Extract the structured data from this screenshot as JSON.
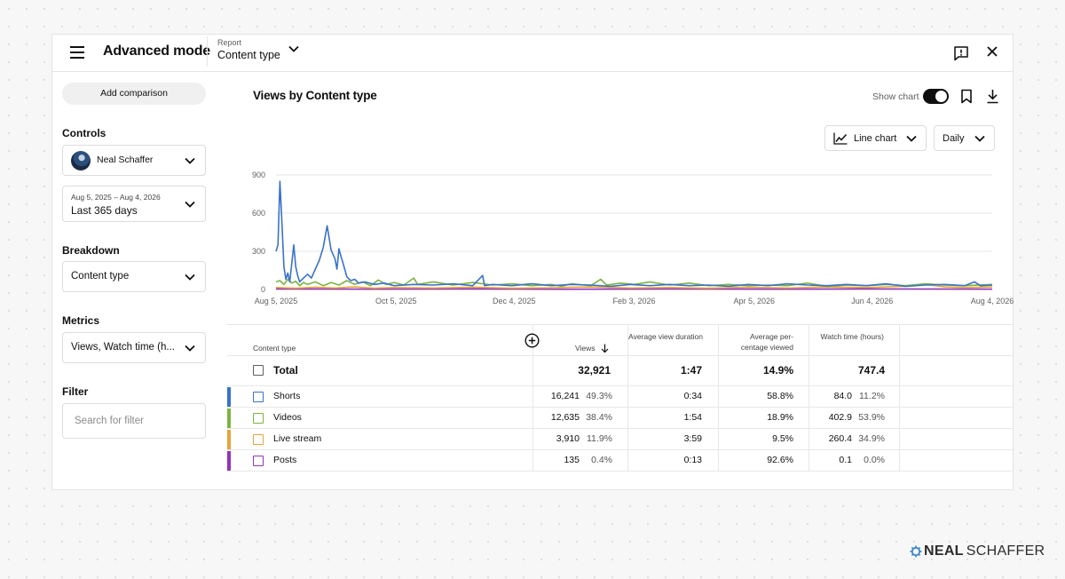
{
  "header": {
    "title": "Advanced mode",
    "report_label": "Report",
    "report_value": "Content type"
  },
  "sidebar": {
    "add_comparison": "Add comparison",
    "controls_label": "Controls",
    "channel_name": "Neal Schaffer",
    "date_range_small": "Aug 5, 2025 – Aug 4, 2026",
    "date_range": "Last 365 days",
    "breakdown_label": "Breakdown",
    "breakdown_value": "Content type",
    "metrics_label": "Metrics",
    "metrics_value": "Views, Watch time (h...",
    "filter_label": "Filter",
    "filter_placeholder": "Search for filter"
  },
  "chart_header": {
    "title": "Views by Content type",
    "show_chart_label": "Show chart",
    "show_chart_on": true,
    "chart_type": "Line chart",
    "granularity": "Daily"
  },
  "chart_data": {
    "type": "line",
    "x_tick_labels": [
      "Aug 5, 2025",
      "Oct 5, 2025",
      "Dec 4, 2025",
      "Feb 3, 2026",
      "Apr 5, 2026",
      "Jun 4, 2026",
      "Aug 4, 2026"
    ],
    "x_tick_days": [
      0,
      61,
      121,
      182,
      243,
      303,
      364
    ],
    "y_tick_labels": [
      "0",
      "300",
      "600",
      "900"
    ],
    "ylim": [
      0,
      900
    ],
    "grid": true,
    "series": [
      {
        "name": "Shorts",
        "color": "#3a72c8",
        "points": [
          [
            0,
            300
          ],
          [
            1,
            350
          ],
          [
            2,
            850
          ],
          [
            3,
            520
          ],
          [
            4,
            180
          ],
          [
            5,
            80
          ],
          [
            6,
            130
          ],
          [
            7,
            60
          ],
          [
            9,
            350
          ],
          [
            10,
            180
          ],
          [
            11,
            110
          ],
          [
            12,
            60
          ],
          [
            14,
            90
          ],
          [
            16,
            120
          ],
          [
            18,
            90
          ],
          [
            20,
            160
          ],
          [
            22,
            230
          ],
          [
            24,
            330
          ],
          [
            26,
            500
          ],
          [
            28,
            310
          ],
          [
            30,
            240
          ],
          [
            31,
            160
          ],
          [
            32,
            320
          ],
          [
            33,
            260
          ],
          [
            34,
            210
          ],
          [
            36,
            100
          ],
          [
            38,
            70
          ],
          [
            40,
            80
          ],
          [
            42,
            50
          ],
          [
            45,
            60
          ],
          [
            50,
            40
          ],
          [
            55,
            50
          ],
          [
            60,
            30
          ],
          [
            70,
            40
          ],
          [
            80,
            35
          ],
          [
            90,
            45
          ],
          [
            100,
            30
          ],
          [
            105,
            110
          ],
          [
            106,
            30
          ],
          [
            110,
            40
          ],
          [
            120,
            30
          ],
          [
            130,
            45
          ],
          [
            140,
            30
          ],
          [
            150,
            40
          ],
          [
            160,
            35
          ],
          [
            170,
            25
          ],
          [
            180,
            40
          ],
          [
            190,
            30
          ],
          [
            200,
            40
          ],
          [
            210,
            30
          ],
          [
            220,
            35
          ],
          [
            230,
            25
          ],
          [
            240,
            40
          ],
          [
            250,
            30
          ],
          [
            260,
            45
          ],
          [
            270,
            35
          ],
          [
            280,
            30
          ],
          [
            290,
            40
          ],
          [
            300,
            30
          ],
          [
            310,
            45
          ],
          [
            320,
            25
          ],
          [
            330,
            35
          ],
          [
            340,
            40
          ],
          [
            350,
            30
          ],
          [
            355,
            60
          ],
          [
            358,
            30
          ],
          [
            364,
            35
          ]
        ]
      },
      {
        "name": "Videos",
        "color": "#7cb342",
        "points": [
          [
            0,
            60
          ],
          [
            2,
            70
          ],
          [
            4,
            40
          ],
          [
            6,
            80
          ],
          [
            8,
            50
          ],
          [
            10,
            65
          ],
          [
            12,
            30
          ],
          [
            14,
            55
          ],
          [
            16,
            40
          ],
          [
            20,
            60
          ],
          [
            24,
            30
          ],
          [
            28,
            55
          ],
          [
            32,
            35
          ],
          [
            36,
            70
          ],
          [
            40,
            40
          ],
          [
            44,
            60
          ],
          [
            48,
            30
          ],
          [
            52,
            75
          ],
          [
            56,
            40
          ],
          [
            60,
            55
          ],
          [
            65,
            35
          ],
          [
            70,
            90
          ],
          [
            72,
            40
          ],
          [
            80,
            60
          ],
          [
            90,
            35
          ],
          [
            100,
            55
          ],
          [
            110,
            35
          ],
          [
            120,
            45
          ],
          [
            130,
            30
          ],
          [
            140,
            40
          ],
          [
            145,
            25
          ],
          [
            150,
            45
          ],
          [
            160,
            30
          ],
          [
            165,
            80
          ],
          [
            168,
            35
          ],
          [
            175,
            50
          ],
          [
            182,
            40
          ],
          [
            190,
            60
          ],
          [
            200,
            35
          ],
          [
            210,
            50
          ],
          [
            220,
            30
          ],
          [
            230,
            40
          ],
          [
            240,
            30
          ],
          [
            250,
            35
          ],
          [
            260,
            30
          ],
          [
            270,
            50
          ],
          [
            280,
            25
          ],
          [
            290,
            35
          ],
          [
            300,
            30
          ],
          [
            310,
            40
          ],
          [
            320,
            30
          ],
          [
            330,
            45
          ],
          [
            340,
            35
          ],
          [
            350,
            30
          ],
          [
            364,
            40
          ]
        ]
      },
      {
        "name": "Live stream",
        "color": "#e8a33d",
        "points": [
          [
            0,
            15
          ],
          [
            10,
            10
          ],
          [
            20,
            18
          ],
          [
            30,
            12
          ],
          [
            40,
            20
          ],
          [
            50,
            10
          ],
          [
            60,
            15
          ],
          [
            80,
            12
          ],
          [
            100,
            18
          ],
          [
            120,
            10
          ],
          [
            140,
            14
          ],
          [
            160,
            20
          ],
          [
            180,
            12
          ],
          [
            200,
            15
          ],
          [
            220,
            10
          ],
          [
            240,
            18
          ],
          [
            260,
            12
          ],
          [
            280,
            20
          ],
          [
            300,
            15
          ],
          [
            320,
            25
          ],
          [
            330,
            40
          ],
          [
            340,
            20
          ],
          [
            350,
            15
          ],
          [
            364,
            20
          ]
        ]
      },
      {
        "name": "Posts",
        "color": "#9334b8",
        "points": [
          [
            0,
            5
          ],
          [
            50,
            3
          ],
          [
            100,
            5
          ],
          [
            150,
            2
          ],
          [
            200,
            5
          ],
          [
            250,
            3
          ],
          [
            300,
            5
          ],
          [
            364,
            3
          ]
        ]
      }
    ]
  },
  "table": {
    "headers": {
      "content_type": "Content type",
      "views": "Views",
      "avg_view_duration": "Average view duration",
      "avg_pct_viewed": "Average per-centage viewed",
      "watch_time": "Watch time (hours)"
    },
    "total": {
      "label": "Total",
      "views": "32,921",
      "avg_view_duration": "1:47",
      "avg_pct_viewed": "14.9%",
      "watch_time": "747.4"
    },
    "rows": [
      {
        "label": "Shorts",
        "color": "#3a72c8",
        "views": "16,241",
        "views_pct": "49.3%",
        "avg_view_duration": "0:34",
        "avg_pct_viewed": "58.8%",
        "watch_time": "84.0",
        "watch_pct": "11.2%"
      },
      {
        "label": "Videos",
        "color": "#7cb342",
        "views": "12,635",
        "views_pct": "38.4%",
        "avg_view_duration": "1:54",
        "avg_pct_viewed": "18.9%",
        "watch_time": "402.9",
        "watch_pct": "53.9%"
      },
      {
        "label": "Live stream",
        "color": "#e8a33d",
        "views": "3,910",
        "views_pct": "11.9%",
        "avg_view_duration": "3:59",
        "avg_pct_viewed": "9.5%",
        "watch_time": "260.4",
        "watch_pct": "34.9%"
      },
      {
        "label": "Posts",
        "color": "#9334b8",
        "views": "135",
        "views_pct": "0.4%",
        "avg_view_duration": "0:13",
        "avg_pct_viewed": "92.6%",
        "watch_time": "0.1",
        "watch_pct": "0.0%"
      }
    ]
  },
  "brand": {
    "part1": "NEAL",
    "part2": "SCHAFFER",
    "icon_color": "#3a86c8"
  }
}
